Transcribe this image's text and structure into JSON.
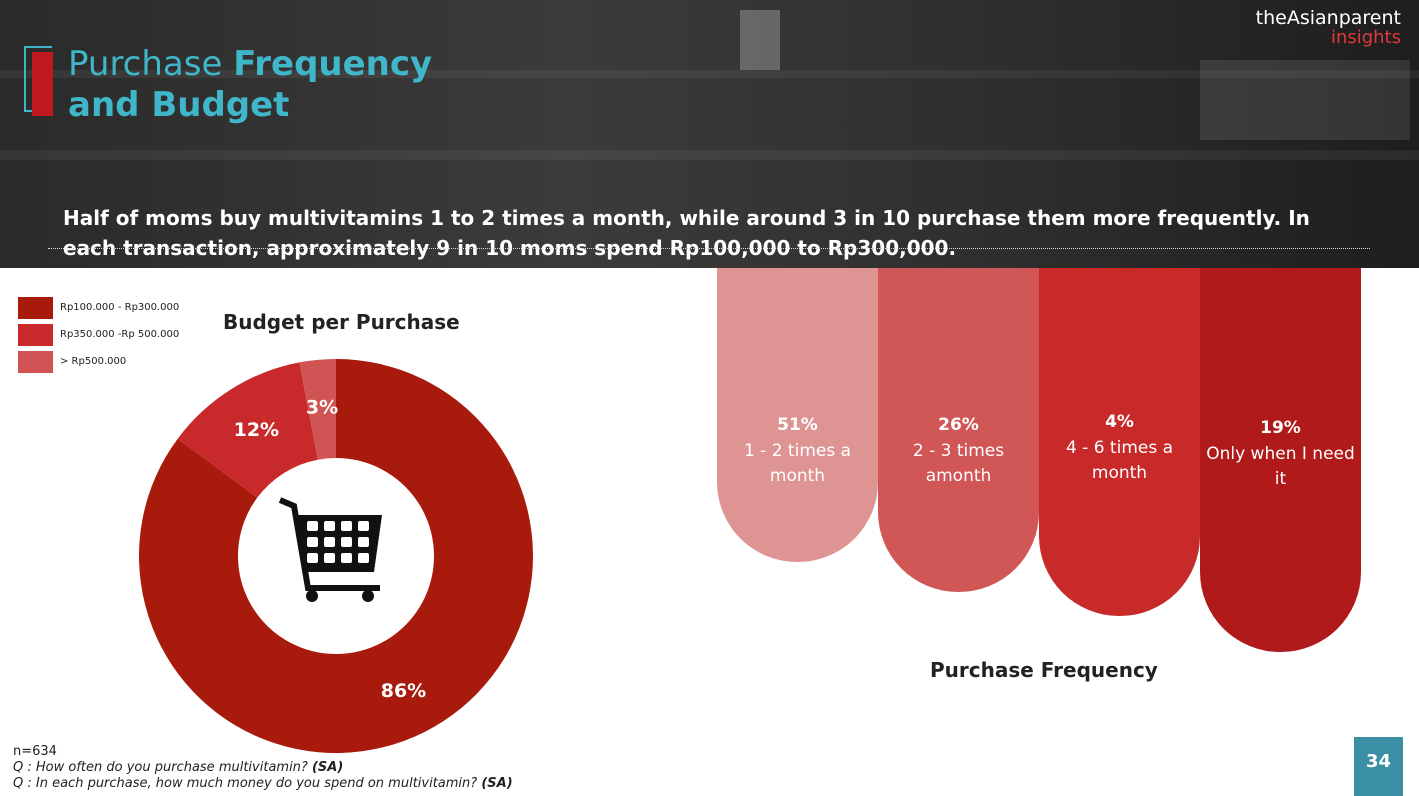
{
  "header": {
    "title_regular": "Purchase ",
    "title_bold1": "Frequency",
    "title_bold2": "and Budget",
    "logo_top": "theAsianparent",
    "logo_bottom": "insights",
    "headline": "Half of moms buy multivitamins 1 to 2 times a month, while around 3 in 10 purchase them more frequently. In each transaction, approximately 9 in 10 moms spend Rp100,000 to Rp300,000."
  },
  "budget": {
    "title": "Budget per Purchase",
    "icon": "shopping-cart-icon"
  },
  "frequency": {
    "title": "Purchase Frequency"
  },
  "chart_data": [
    {
      "type": "pie",
      "title": "Budget per Purchase",
      "categories": [
        "Rp100.000 - Rp300.000",
        "Rp350.000 -Rp 500.000",
        "> Rp500.000"
      ],
      "values": [
        86,
        12,
        3
      ],
      "labels": [
        "86%",
        "12%",
        "3%"
      ],
      "colors": [
        "#a81b0c",
        "#c8292a",
        "#d05454"
      ],
      "legend": "top-left"
    },
    {
      "type": "bar",
      "title": "Purchase Frequency",
      "categories": [
        "1 - 2 times a month",
        "2 - 3 times amonth",
        "4 - 6 times a month",
        "Only when I need it"
      ],
      "values": [
        51,
        26,
        4,
        19
      ],
      "labels": [
        "51%",
        "26%",
        "4%",
        "19%"
      ],
      "colors": [
        "#df9494",
        "#d15656",
        "#c82a2a",
        "#b01a1a"
      ]
    }
  ],
  "footer": {
    "n": "n=634",
    "q1": "Q : How often do you purchase multivitamin?",
    "q1_tag": "(SA)",
    "q2": "Q : In each purchase, how much money do you spend on multivitamin?",
    "q2_tag": "(SA)",
    "page": "34"
  }
}
